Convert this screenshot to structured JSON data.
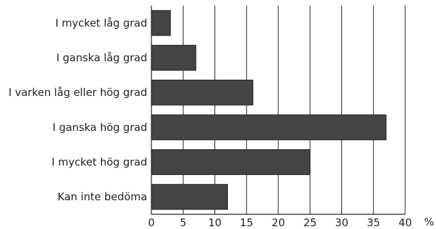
{
  "chart_data": {
    "type": "bar",
    "orientation": "horizontal",
    "categories": [
      "I mycket låg grad",
      "I ganska låg grad",
      "I varken låg eller hög grad",
      "I ganska hög grad",
      "I mycket hög grad",
      "Kan inte bedöma"
    ],
    "values": [
      3,
      7,
      16,
      37,
      25,
      12
    ],
    "xlim": [
      0,
      40
    ],
    "xticks": [
      0,
      5,
      10,
      15,
      20,
      25,
      30,
      35,
      40
    ],
    "unit": "%",
    "grid": "vertical",
    "bar_color": "#444444",
    "title": "",
    "xlabel": "",
    "ylabel": ""
  }
}
